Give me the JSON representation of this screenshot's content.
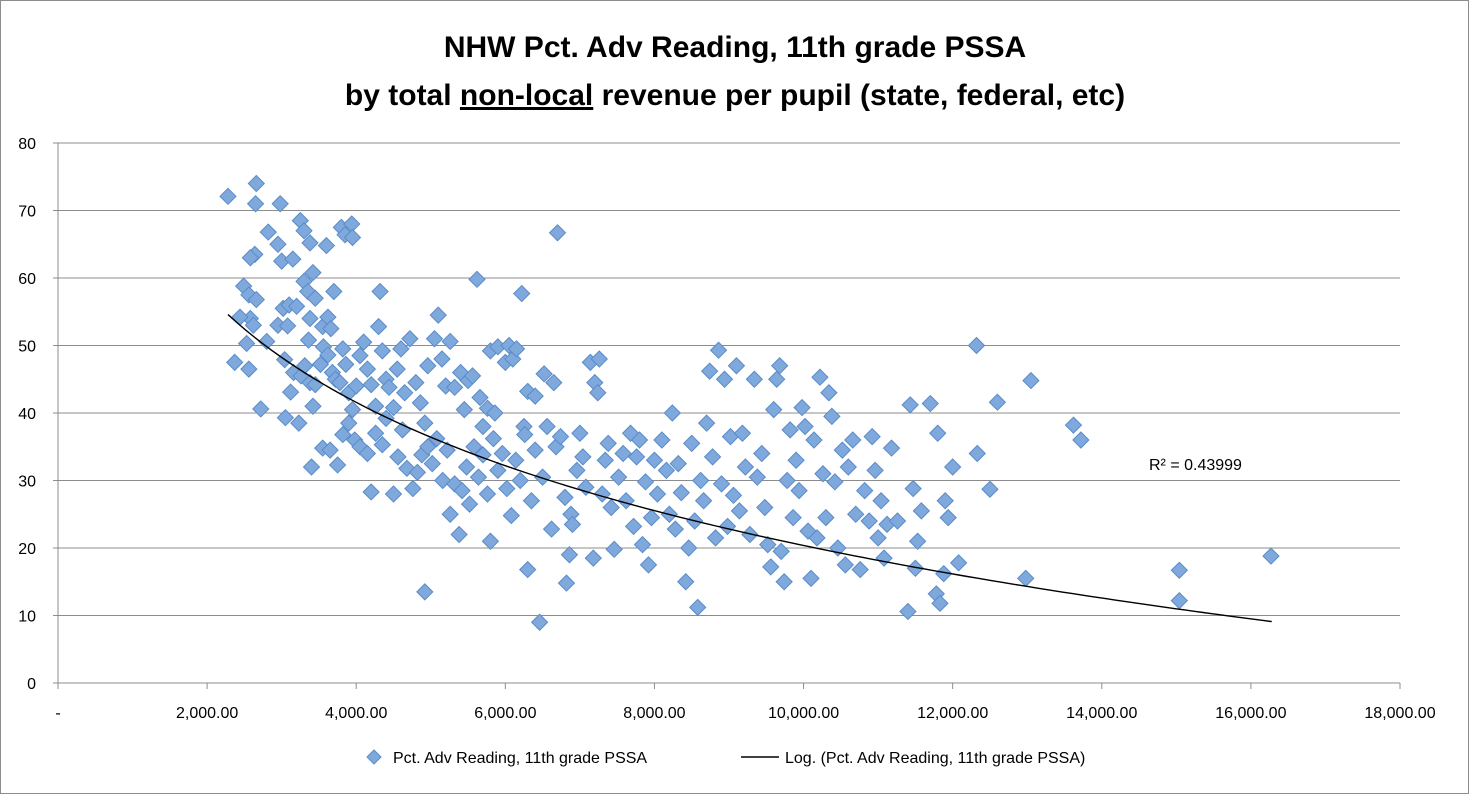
{
  "chart_data": {
    "type": "scatter",
    "title_line1": "NHW Pct. Adv Reading, 11th grade PSSA",
    "title_line2_prefix": "by total ",
    "title_line2_underlined": "non-local",
    "title_line2_suffix": " revenue per pupil (state, federal, etc)",
    "xlabel": "",
    "ylabel": "",
    "xlim": [
      0,
      18000
    ],
    "ylim": [
      0,
      80
    ],
    "x_ticks": [
      0,
      2000,
      4000,
      6000,
      8000,
      10000,
      12000,
      14000,
      16000,
      18000
    ],
    "x_tick_labels": [
      "-",
      "2,000.00",
      "4,000.00",
      "6,000.00",
      "8,000.00",
      "10,000.00",
      "12,000.00",
      "14,000.00",
      "16,000.00",
      "18,000.00"
    ],
    "y_ticks": [
      0,
      10,
      20,
      30,
      40,
      50,
      60,
      70,
      80
    ],
    "y_tick_labels": [
      "0",
      "10",
      "20",
      "30",
      "40",
      "50",
      "60",
      "70",
      "80"
    ],
    "grid": "horizontal",
    "marker_color": "#7fa9dc",
    "marker_edge_color": "#5b8cc8",
    "trend_color": "#000000",
    "trendline": {
      "type": "logarithmic",
      "a": -23.14,
      "b": 233.5,
      "x_range": [
        2280,
        16280
      ],
      "r2_label": "R² = 0.43999"
    },
    "legend": {
      "position": "bottom",
      "series_label": "Pct. Adv Reading, 11th grade PSSA",
      "trend_label": "Log. (Pct. Adv Reading, 11th grade PSSA)"
    },
    "series": [
      {
        "name": "Pct. Adv Reading, 11th grade PSSA",
        "points": [
          [
            2280,
            72.1
          ],
          [
            2660,
            74.0
          ],
          [
            2980,
            71.0
          ],
          [
            2650,
            71.0
          ],
          [
            2640,
            63.5
          ],
          [
            2580,
            63.0
          ],
          [
            2820,
            66.8
          ],
          [
            2950,
            65.0
          ],
          [
            3000,
            62.5
          ],
          [
            3150,
            62.8
          ],
          [
            3250,
            68.5
          ],
          [
            3300,
            67.0
          ],
          [
            3380,
            65.2
          ],
          [
            3800,
            67.5
          ],
          [
            3850,
            66.4
          ],
          [
            3940,
            68.0
          ],
          [
            3950,
            66.0
          ],
          [
            3600,
            64.8
          ],
          [
            2490,
            58.8
          ],
          [
            2560,
            57.5
          ],
          [
            2660,
            56.8
          ],
          [
            2580,
            54.0
          ],
          [
            2620,
            53.0
          ],
          [
            2440,
            54.2
          ],
          [
            2370,
            47.5
          ],
          [
            2530,
            50.3
          ],
          [
            2560,
            46.5
          ],
          [
            2720,
            40.6
          ],
          [
            2800,
            50.6
          ],
          [
            2950,
            53.0
          ],
          [
            3020,
            55.5
          ],
          [
            3100,
            56.0
          ],
          [
            3080,
            52.9
          ],
          [
            3200,
            55.8
          ],
          [
            3300,
            59.5
          ],
          [
            3350,
            58.0
          ],
          [
            3420,
            60.8
          ],
          [
            3450,
            57.0
          ],
          [
            3700,
            58.0
          ],
          [
            4320,
            58.0
          ],
          [
            3380,
            54.0
          ],
          [
            3550,
            52.8
          ],
          [
            3620,
            54.2
          ],
          [
            3660,
            52.5
          ],
          [
            3360,
            50.8
          ],
          [
            3040,
            47.9
          ],
          [
            3050,
            39.3
          ],
          [
            3230,
            38.5
          ],
          [
            3120,
            43.1
          ],
          [
            3160,
            46.0
          ],
          [
            3260,
            45.5
          ],
          [
            3310,
            47.0
          ],
          [
            3380,
            44.5
          ],
          [
            3420,
            41.0
          ],
          [
            3450,
            44.2
          ],
          [
            3520,
            47.2
          ],
          [
            3560,
            49.8
          ],
          [
            3620,
            48.6
          ],
          [
            3680,
            46.0
          ],
          [
            3720,
            45.0
          ],
          [
            3780,
            44.5
          ],
          [
            3820,
            49.5
          ],
          [
            3860,
            47.2
          ],
          [
            3900,
            43.0
          ],
          [
            3950,
            40.5
          ],
          [
            4000,
            44.0
          ],
          [
            4050,
            48.5
          ],
          [
            4100,
            50.5
          ],
          [
            4150,
            46.5
          ],
          [
            4200,
            44.2
          ],
          [
            4260,
            41.0
          ],
          [
            4300,
            52.8
          ],
          [
            4350,
            49.2
          ],
          [
            4400,
            45.0
          ],
          [
            4440,
            43.8
          ],
          [
            4500,
            40.8
          ],
          [
            4550,
            46.5
          ],
          [
            4600,
            49.5
          ],
          [
            4650,
            43.0
          ],
          [
            4720,
            51.0
          ],
          [
            4800,
            44.5
          ],
          [
            4860,
            41.5
          ],
          [
            4920,
            38.5
          ],
          [
            4960,
            47.0
          ],
          [
            5050,
            51.0
          ],
          [
            5100,
            54.5
          ],
          [
            5150,
            48.0
          ],
          [
            5200,
            44.0
          ],
          [
            5260,
            50.6
          ],
          [
            5320,
            43.8
          ],
          [
            5400,
            46.0
          ],
          [
            5450,
            40.5
          ],
          [
            5500,
            44.8
          ],
          [
            5560,
            45.5
          ],
          [
            5620,
            59.8
          ],
          [
            5660,
            42.3
          ],
          [
            5700,
            38.0
          ],
          [
            5760,
            40.7
          ],
          [
            5800,
            49.2
          ],
          [
            5860,
            40.0
          ],
          [
            5900,
            49.8
          ],
          [
            6000,
            47.5
          ],
          [
            6050,
            50.0
          ],
          [
            6100,
            48.0
          ],
          [
            6150,
            49.5
          ],
          [
            6220,
            57.7
          ],
          [
            6250,
            38.0
          ],
          [
            6300,
            43.2
          ],
          [
            6400,
            42.5
          ],
          [
            6520,
            45.8
          ],
          [
            6650,
            44.5
          ],
          [
            6700,
            66.7
          ],
          [
            3400,
            32.0
          ],
          [
            3550,
            34.8
          ],
          [
            3650,
            34.5
          ],
          [
            3750,
            32.3
          ],
          [
            3820,
            36.8
          ],
          [
            3900,
            38.5
          ],
          [
            3980,
            36.0
          ],
          [
            4050,
            35.0
          ],
          [
            4150,
            34.0
          ],
          [
            4200,
            28.3
          ],
          [
            4260,
            37.0
          ],
          [
            4350,
            35.3
          ],
          [
            4400,
            39.2
          ],
          [
            4500,
            28.0
          ],
          [
            4560,
            33.5
          ],
          [
            4620,
            37.5
          ],
          [
            4680,
            31.8
          ],
          [
            4760,
            28.8
          ],
          [
            4820,
            31.2
          ],
          [
            4880,
            33.8
          ],
          [
            4920,
            13.5
          ],
          [
            4960,
            35.0
          ],
          [
            5020,
            32.5
          ],
          [
            5080,
            36.2
          ],
          [
            5160,
            30.0
          ],
          [
            5220,
            34.5
          ],
          [
            5260,
            25.0
          ],
          [
            5320,
            29.5
          ],
          [
            5380,
            22.0
          ],
          [
            5420,
            28.5
          ],
          [
            5480,
            32.0
          ],
          [
            5520,
            26.5
          ],
          [
            5580,
            35.0
          ],
          [
            5640,
            30.5
          ],
          [
            5700,
            33.8
          ],
          [
            5760,
            28.0
          ],
          [
            5800,
            21.0
          ],
          [
            5840,
            36.2
          ],
          [
            5900,
            31.5
          ],
          [
            5960,
            34.0
          ],
          [
            6020,
            28.8
          ],
          [
            6080,
            24.8
          ],
          [
            6140,
            33.0
          ],
          [
            6200,
            30.0
          ],
          [
            6260,
            36.8
          ],
          [
            6300,
            16.8
          ],
          [
            6350,
            27.0
          ],
          [
            6400,
            34.5
          ],
          [
            6460,
            9.0
          ],
          [
            6500,
            30.5
          ],
          [
            6560,
            38.0
          ],
          [
            6620,
            22.8
          ],
          [
            6680,
            35.0
          ],
          [
            6740,
            36.5
          ],
          [
            6800,
            27.5
          ],
          [
            6860,
            19.0
          ],
          [
            6820,
            14.8
          ],
          [
            6880,
            25.0
          ],
          [
            6900,
            23.5
          ],
          [
            6960,
            31.5
          ],
          [
            7000,
            37.0
          ],
          [
            7040,
            33.5
          ],
          [
            7080,
            29.0
          ],
          [
            7140,
            47.5
          ],
          [
            7200,
            44.5
          ],
          [
            7240,
            43.0
          ],
          [
            7260,
            48.0
          ],
          [
            7180,
            18.5
          ],
          [
            7300,
            28.0
          ],
          [
            7340,
            33.0
          ],
          [
            7380,
            35.5
          ],
          [
            7420,
            26.0
          ],
          [
            7460,
            19.8
          ],
          [
            7520,
            30.5
          ],
          [
            7580,
            34.0
          ],
          [
            7620,
            27.0
          ],
          [
            7680,
            37.0
          ],
          [
            7720,
            23.2
          ],
          [
            7760,
            33.5
          ],
          [
            7800,
            36.0
          ],
          [
            7840,
            20.5
          ],
          [
            7880,
            29.8
          ],
          [
            7920,
            17.5
          ],
          [
            7960,
            24.5
          ],
          [
            8000,
            33.0
          ],
          [
            8040,
            28.0
          ],
          [
            8100,
            36.0
          ],
          [
            8160,
            31.5
          ],
          [
            8200,
            25.0
          ],
          [
            8240,
            40.0
          ],
          [
            8280,
            22.8
          ],
          [
            8320,
            32.5
          ],
          [
            8360,
            28.2
          ],
          [
            8420,
            15.0
          ],
          [
            8460,
            20.0
          ],
          [
            8500,
            35.5
          ],
          [
            8540,
            24.0
          ],
          [
            8580,
            11.2
          ],
          [
            8620,
            30.0
          ],
          [
            8660,
            27.0
          ],
          [
            8700,
            38.5
          ],
          [
            8740,
            46.2
          ],
          [
            8780,
            33.5
          ],
          [
            8820,
            21.5
          ],
          [
            8860,
            49.3
          ],
          [
            8900,
            29.5
          ],
          [
            8940,
            45.0
          ],
          [
            8980,
            23.2
          ],
          [
            9020,
            36.5
          ],
          [
            9060,
            27.8
          ],
          [
            9100,
            47.0
          ],
          [
            9140,
            25.5
          ],
          [
            9180,
            37.0
          ],
          [
            9220,
            32.0
          ],
          [
            9280,
            22.0
          ],
          [
            9340,
            45.0
          ],
          [
            9380,
            30.5
          ],
          [
            9440,
            34.0
          ],
          [
            9480,
            26.0
          ],
          [
            9520,
            20.5
          ],
          [
            9560,
            17.2
          ],
          [
            9600,
            40.5
          ],
          [
            9640,
            45.0
          ],
          [
            9680,
            47.0
          ],
          [
            9700,
            19.5
          ],
          [
            9740,
            15.0
          ],
          [
            9780,
            30.0
          ],
          [
            9820,
            37.5
          ],
          [
            9860,
            24.5
          ],
          [
            9900,
            33.0
          ],
          [
            9940,
            28.5
          ],
          [
            9980,
            40.8
          ],
          [
            10020,
            38.0
          ],
          [
            10060,
            22.5
          ],
          [
            10100,
            15.5
          ],
          [
            10140,
            36.0
          ],
          [
            10180,
            21.5
          ],
          [
            10220,
            45.3
          ],
          [
            10260,
            31.0
          ],
          [
            10300,
            24.5
          ],
          [
            10340,
            43.0
          ],
          [
            10380,
            39.5
          ],
          [
            10420,
            29.8
          ],
          [
            10460,
            20.0
          ],
          [
            10520,
            34.5
          ],
          [
            10560,
            17.5
          ],
          [
            10600,
            32.0
          ],
          [
            10660,
            36.0
          ],
          [
            10700,
            25.0
          ],
          [
            10760,
            16.8
          ],
          [
            10820,
            28.5
          ],
          [
            10880,
            24.0
          ],
          [
            10920,
            36.5
          ],
          [
            10960,
            31.5
          ],
          [
            11000,
            21.5
          ],
          [
            11040,
            27.0
          ],
          [
            11080,
            18.5
          ],
          [
            11120,
            23.5
          ],
          [
            11180,
            34.8
          ],
          [
            11260,
            24.0
          ],
          [
            11400,
            10.6
          ],
          [
            11430,
            41.2
          ],
          [
            11470,
            28.8
          ],
          [
            11500,
            17.0
          ],
          [
            11530,
            21.0
          ],
          [
            11580,
            25.5
          ],
          [
            11700,
            41.4
          ],
          [
            11780,
            13.2
          ],
          [
            11800,
            37.0
          ],
          [
            11830,
            11.8
          ],
          [
            11880,
            16.2
          ],
          [
            11900,
            27.0
          ],
          [
            11940,
            24.5
          ],
          [
            12000,
            32.0
          ],
          [
            12080,
            17.8
          ],
          [
            12320,
            50.0
          ],
          [
            12330,
            34.0
          ],
          [
            12500,
            28.7
          ],
          [
            12600,
            41.6
          ],
          [
            12980,
            15.5
          ],
          [
            13050,
            44.8
          ],
          [
            13620,
            38.2
          ],
          [
            13720,
            36.0
          ],
          [
            15040,
            16.7
          ],
          [
            15040,
            12.2
          ],
          [
            16270,
            18.8
          ]
        ]
      }
    ]
  }
}
